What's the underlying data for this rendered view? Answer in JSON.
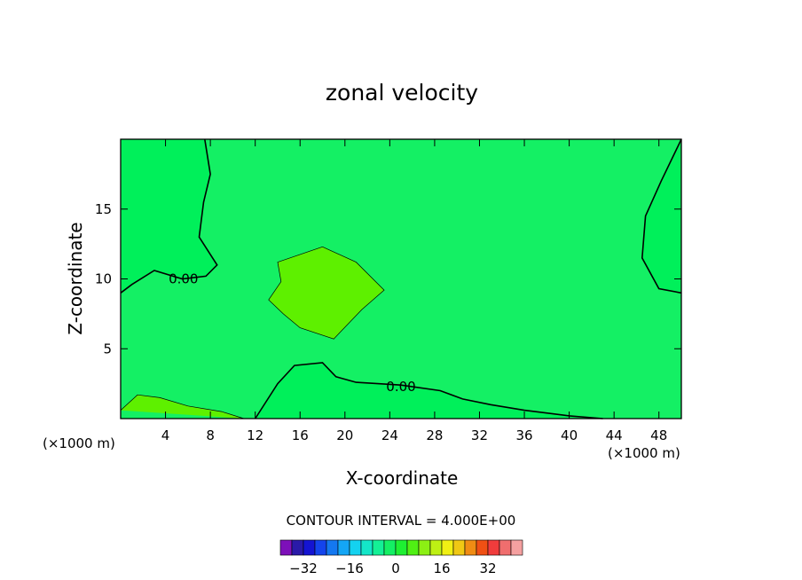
{
  "chart_data": {
    "type": "heatmap",
    "title": "zonal velocity",
    "xlabel": "X-coordinate",
    "ylabel": "Z-coordinate",
    "x_unit": "(×1000 m)",
    "xlim": [
      0,
      50
    ],
    "ylim": [
      0,
      20
    ],
    "x_ticks": [
      4,
      8,
      12,
      16,
      20,
      24,
      28,
      32,
      36,
      40,
      44,
      48
    ],
    "y_ticks": [
      5,
      10,
      15
    ],
    "contour_interval_label": "CONTOUR INTERVAL = 4.000E+00",
    "contour_labels": [
      {
        "text": "0.00",
        "x": 5.6,
        "z": 10.0
      },
      {
        "text": "0.00",
        "x": 25.0,
        "z": 2.3
      }
    ],
    "colorbar": {
      "levels": [
        -36,
        -32,
        -28,
        -24,
        -20,
        -16,
        -12,
        -8,
        -4,
        0,
        4,
        8,
        12,
        16,
        20,
        24,
        28,
        32,
        36,
        40
      ],
      "tick_labels": [
        {
          "value": -32,
          "label": "−32"
        },
        {
          "value": -16,
          "label": "−16"
        },
        {
          "value": 0,
          "label": "0"
        },
        {
          "value": 16,
          "label": "16"
        },
        {
          "value": 32,
          "label": "32"
        }
      ],
      "colors": [
        "#7d10b9",
        "#2a1aa8",
        "#1414d2",
        "#1444ec",
        "#1478f0",
        "#14a6f5",
        "#14d2f0",
        "#14e6c8",
        "#14f096",
        "#14f064",
        "#1ef032",
        "#50f014",
        "#8cf014",
        "#bef014",
        "#f0f014",
        "#f0c814",
        "#f08c14",
        "#f05014",
        "#f03c3c",
        "#f06e6e",
        "#f5a0a0"
      ]
    },
    "background_value_color": "#14f064",
    "regions": [
      {
        "level": 0,
        "color": "#00f05a",
        "desc": "weak negative left upper region",
        "points": [
          [
            0,
            20
          ],
          [
            7.5,
            20
          ],
          [
            8.0,
            17.5
          ],
          [
            7.4,
            15.5
          ],
          [
            7.0,
            13
          ],
          [
            8.6,
            11
          ],
          [
            7.6,
            10.2
          ],
          [
            5.5,
            10.0
          ],
          [
            3.0,
            10.6
          ],
          [
            1.0,
            9.6
          ],
          [
            0,
            9.0
          ]
        ]
      },
      {
        "level": 0,
        "color": "#00f05a",
        "desc": "weak negative right region",
        "points": [
          [
            50,
            20
          ],
          [
            48.2,
            17
          ],
          [
            46.8,
            14.5
          ],
          [
            46.5,
            11.5
          ],
          [
            48.0,
            9.3
          ],
          [
            50,
            9.0
          ]
        ]
      },
      {
        "level": 4,
        "color": "#5ef000",
        "desc": "weak positive center region",
        "points": [
          [
            18.0,
            12.3
          ],
          [
            21.0,
            11.2
          ],
          [
            23.5,
            9.2
          ],
          [
            21.5,
            7.8
          ],
          [
            19.0,
            5.7
          ],
          [
            16.0,
            6.5
          ],
          [
            14.5,
            7.5
          ],
          [
            13.2,
            8.5
          ],
          [
            14.3,
            9.8
          ],
          [
            14.0,
            11.2
          ]
        ]
      },
      {
        "level": 0,
        "color": "#00f05a",
        "desc": "weak negative near-surface region",
        "points": [
          [
            12.0,
            0
          ],
          [
            14.0,
            2.5
          ],
          [
            15.5,
            3.8
          ],
          [
            18.0,
            4.0
          ],
          [
            19.2,
            3.0
          ],
          [
            21.0,
            2.6
          ],
          [
            25.0,
            2.4
          ],
          [
            28.5,
            2.0
          ],
          [
            30.5,
            1.4
          ],
          [
            33.0,
            1.0
          ],
          [
            36.0,
            0.6
          ],
          [
            40.0,
            0.2
          ],
          [
            43.0,
            0
          ]
        ]
      },
      {
        "level": 4,
        "color": "#5ef000",
        "desc": "weak positive surface strip",
        "points": [
          [
            0,
            0.6
          ],
          [
            1.5,
            1.7
          ],
          [
            3.5,
            1.5
          ],
          [
            6.0,
            0.9
          ],
          [
            9.0,
            0.5
          ],
          [
            11.0,
            0
          ]
        ]
      }
    ],
    "contours_zero": [
      {
        "points": [
          [
            0,
            9.0
          ],
          [
            1.0,
            9.6
          ],
          [
            3.0,
            10.6
          ],
          [
            5.5,
            10.0
          ],
          [
            7.6,
            10.2
          ],
          [
            8.6,
            11
          ],
          [
            7.0,
            13
          ],
          [
            7.4,
            15.5
          ],
          [
            8.0,
            17.5
          ],
          [
            7.5,
            20
          ]
        ]
      },
      {
        "points": [
          [
            50,
            20
          ],
          [
            48.2,
            17
          ],
          [
            46.8,
            14.5
          ],
          [
            46.5,
            11.5
          ],
          [
            48.0,
            9.3
          ],
          [
            50,
            9.0
          ]
        ]
      },
      {
        "points": [
          [
            12.0,
            0
          ],
          [
            14.0,
            2.5
          ],
          [
            15.5,
            3.8
          ],
          [
            18.0,
            4.0
          ],
          [
            19.2,
            3.0
          ],
          [
            21.0,
            2.6
          ],
          [
            25.0,
            2.4
          ],
          [
            28.5,
            2.0
          ],
          [
            30.5,
            1.4
          ],
          [
            33.0,
            1.0
          ],
          [
            36.0,
            0.6
          ],
          [
            40.0,
            0.2
          ],
          [
            43.0,
            0
          ]
        ]
      }
    ],
    "contours_four": [
      {
        "points": [
          [
            18.0,
            12.3
          ],
          [
            21.0,
            11.2
          ],
          [
            23.5,
            9.2
          ],
          [
            21.5,
            7.8
          ],
          [
            19.0,
            5.7
          ],
          [
            16.0,
            6.5
          ],
          [
            14.5,
            7.5
          ],
          [
            13.2,
            8.5
          ],
          [
            14.3,
            9.8
          ],
          [
            14.0,
            11.2
          ],
          [
            18.0,
            12.3
          ]
        ]
      },
      {
        "points": [
          [
            0,
            0.6
          ],
          [
            1.5,
            1.7
          ],
          [
            3.5,
            1.5
          ],
          [
            6.0,
            0.9
          ],
          [
            9.0,
            0.5
          ],
          [
            11.0,
            0
          ]
        ]
      }
    ]
  }
}
